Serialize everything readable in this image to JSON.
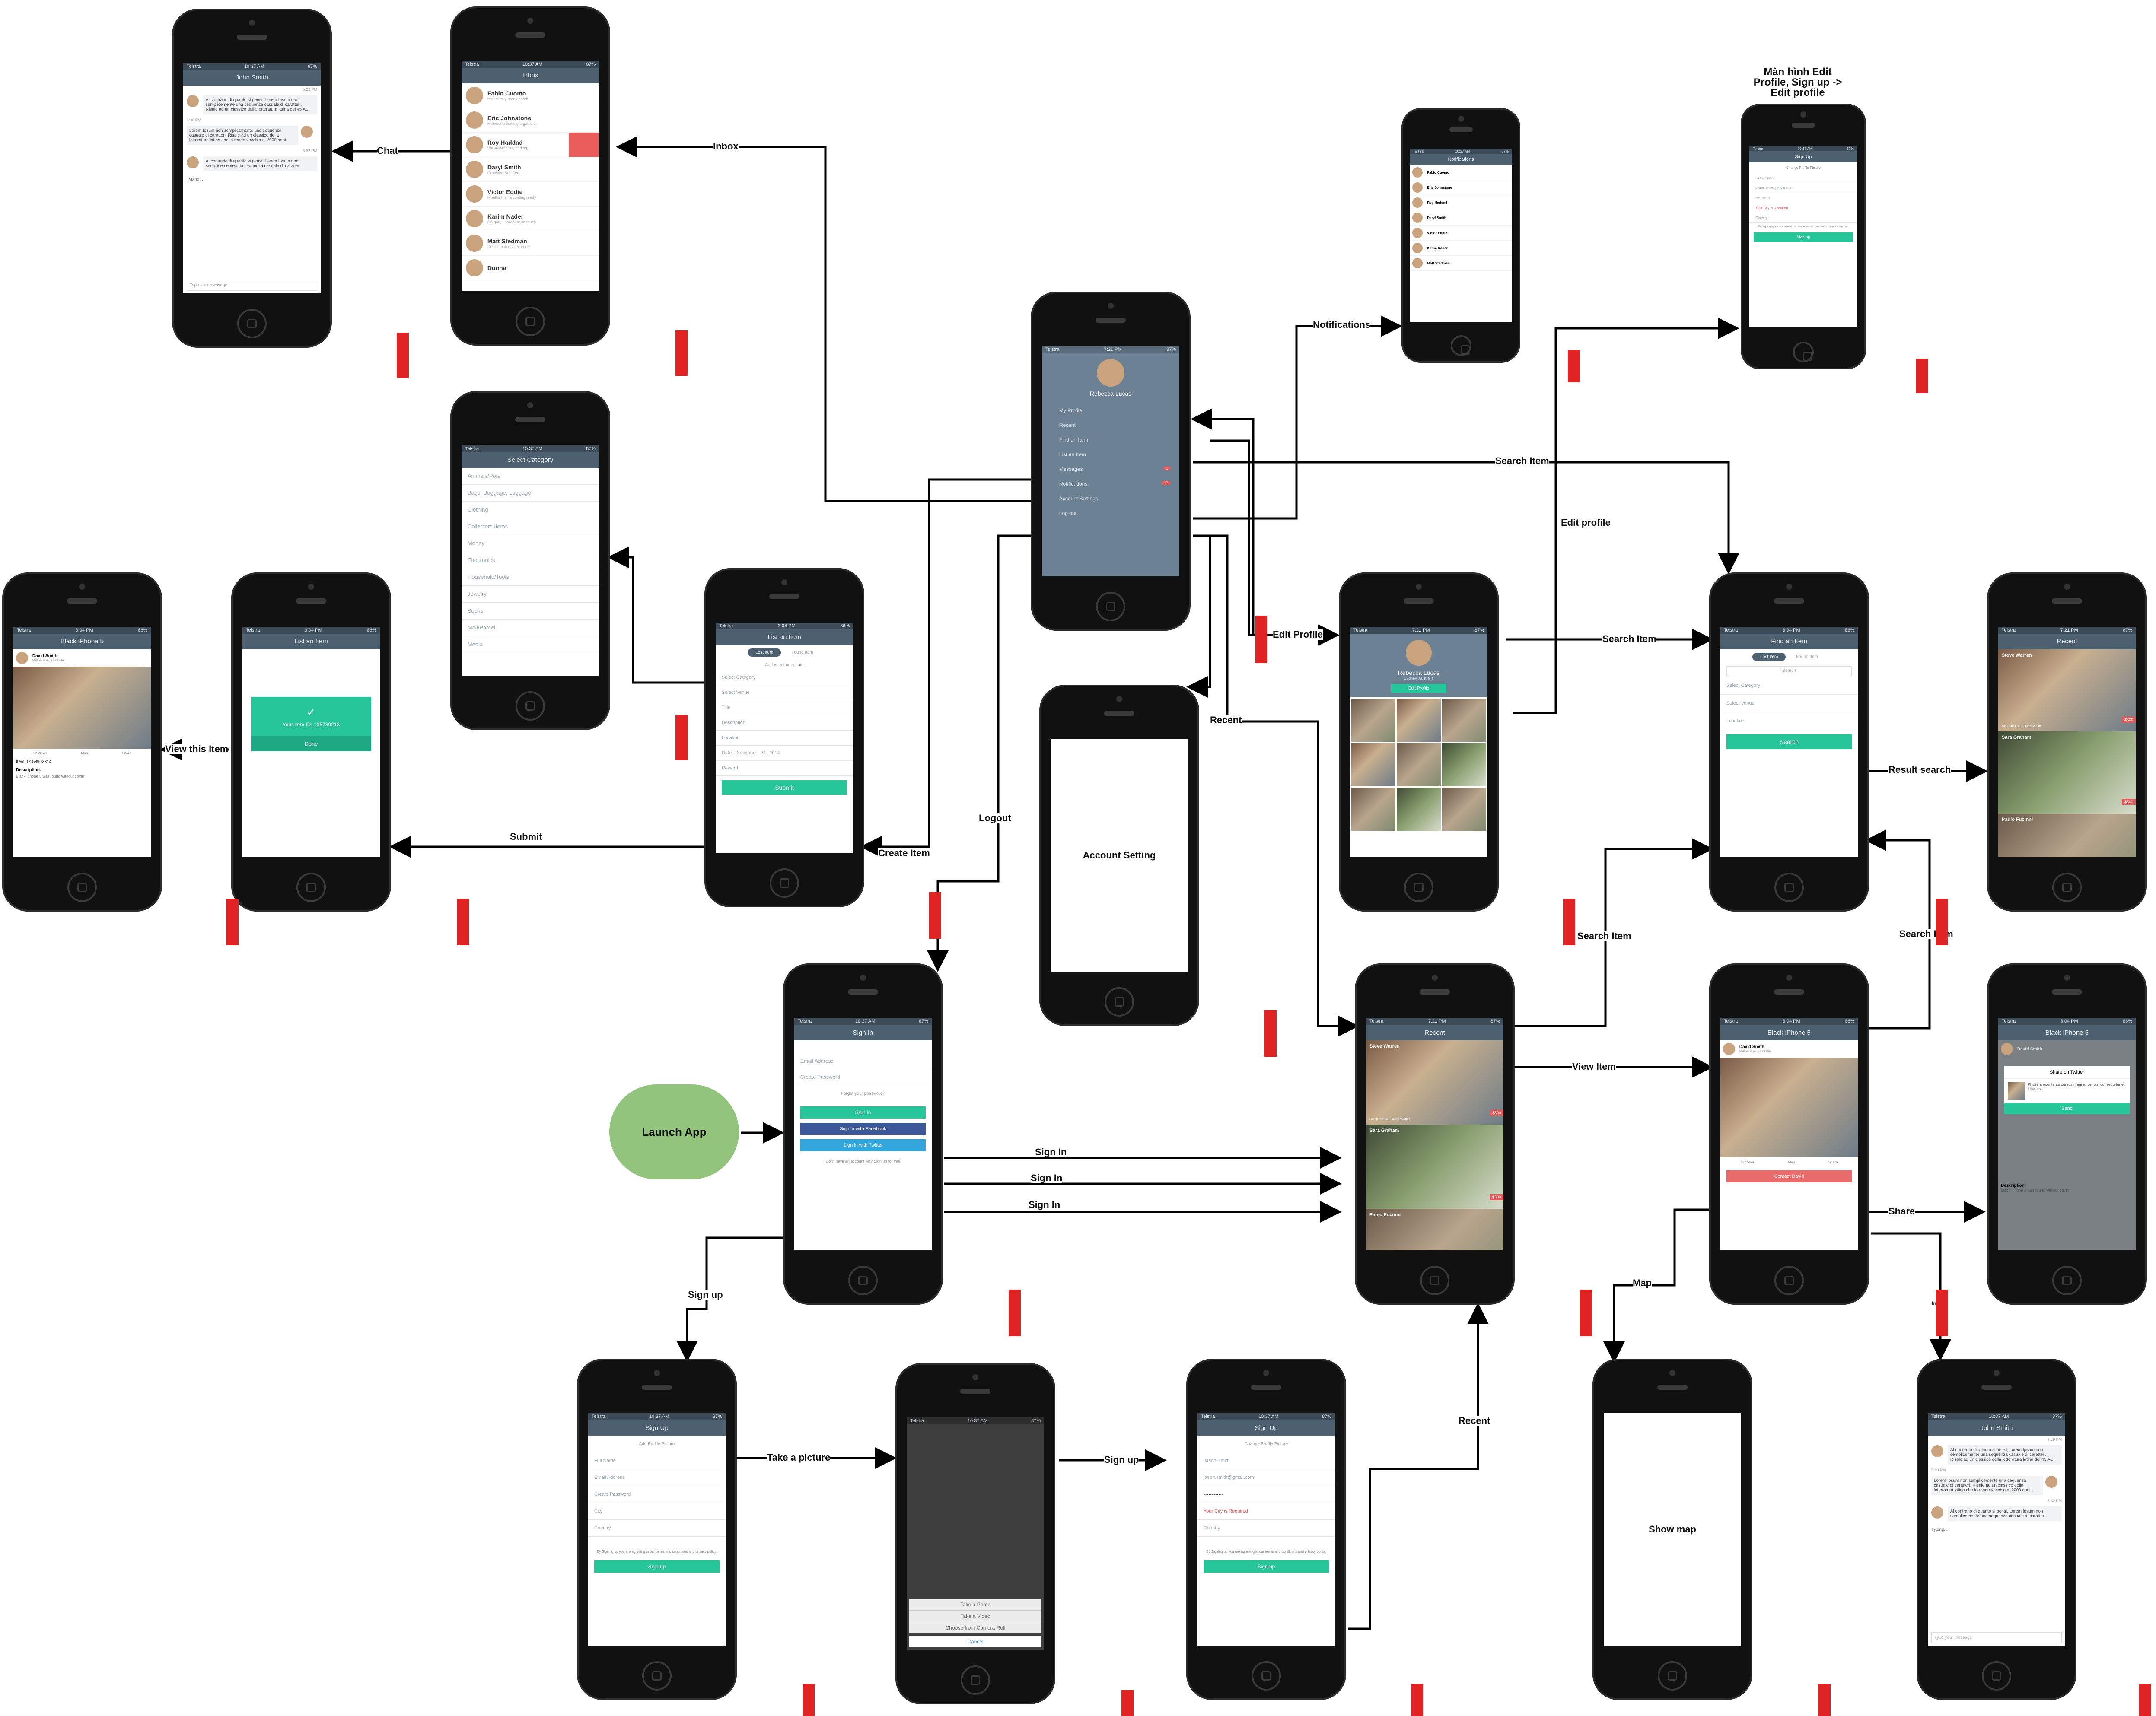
{
  "notes": {
    "edit_profile_title": "Màn hình Edit Profile, Sign up -> Edit profile"
  },
  "launch": {
    "label": "Launch App"
  },
  "placeholders": {
    "account_setting": "Account Setting",
    "show_map": "Show map"
  },
  "edges": {
    "chat": "Chat",
    "inbox": "Inbox",
    "notifications": "Notifications",
    "search_item_top": "Search Item",
    "edit_profile_upper": "Edit profile",
    "edit_profile": "Edit Profile",
    "search_item_profile": "Search Item",
    "recent_menu": "Recent",
    "logout": "Logout",
    "create_item": "Create Item",
    "submit": "Submit",
    "view_this_item": "View this Item",
    "result_search": "Result search",
    "search_item_recent": "Search Item",
    "search_item_detail": "Search Item",
    "view_item": "View Item",
    "share": "Share",
    "map": "Map",
    "inbox_small": "Inbox",
    "sign_in_1": "Sign In",
    "sign_in_2": "Sign In",
    "sign_in_3": "Sign In",
    "sign_up": "Sign up",
    "take_a_picture": "Take a picture",
    "sign_up_2": "Sign up",
    "recent_bottom": "Recent"
  },
  "screens": {
    "chat": {
      "title": "John Smith",
      "times": [
        "5:29 PM",
        "5:30 PM",
        "5:32 PM"
      ],
      "messages": [
        "Al contrario di quanto si pensi, Lorem Ipsum non semplicemente una sequenza casuale di caratteri. Risale ad un classico della letteratura latina del 45 AC.",
        "Lorem Ipsum non semplicemente una sequenza casuale di caratteri. Risale ad un classico della letteratura latina che lo rende vecchio di 2000 anni.",
        "Al contrario di quanto si pensi, Lorem Ipsum non semplicemente una sequenza casuale di caratteri."
      ],
      "typing": "Typing...",
      "input_placeholder": "Type your message"
    },
    "inbox": {
      "title": "Inbox",
      "items": [
        {
          "name": "Fabio Cuomo",
          "preview": "It's actually pretty good!"
        },
        {
          "name": "Eric Johnstone",
          "preview": "Member a coming together..."
        },
        {
          "name": "Roy Haddad",
          "preview": "We've definitely finding..."
        },
        {
          "name": "Daryl Smith",
          "preview": "Grabbing Bed Fer..."
        },
        {
          "name": "Victor Eddie",
          "preview": "Months mail a coming ready"
        },
        {
          "name": "Karim Nader",
          "preview": "Oh god, I now cute so much"
        },
        {
          "name": "Matt Stedman",
          "preview": "Don't touch my recorder!"
        },
        {
          "name": "Donna",
          "preview": ""
        }
      ]
    },
    "notifications": {
      "title": "Notifications",
      "items": [
        "Fabio Cuomo",
        "Eric Johnstone",
        "Roy Haddad",
        "Daryl Smith",
        "Victor Eddie",
        "Karim Nader",
        "Matt Stedman"
      ]
    },
    "signup_edit": {
      "title": "Sign Up",
      "change_picture": "Change Profile Picture",
      "fields": [
        "Jason Smith",
        "jason.smith@gmail.com",
        "••••••••••••",
        "Your City is Required",
        "Country"
      ],
      "terms": "By Signing up you are agreeing to our terms and conditions and privacy policy.",
      "button": "Sign up"
    },
    "menu": {
      "status_carrier": "Telstra",
      "time": "7:21 PM",
      "battery": "87%",
      "user": "Rebecca Lucas",
      "items": [
        "My Profile",
        "Recent",
        "Find an Item",
        "List an Item",
        "Messages",
        "Notifications",
        "Account Settings",
        "Log out"
      ],
      "badges": {
        "messages": "2",
        "notifications": "17"
      }
    },
    "select_category": {
      "title": "Select Category",
      "items": [
        "Animals/Pets",
        "Bags, Baggage, Luggage",
        "Clothing",
        "Collectors Items",
        "Money",
        "Electronics",
        "Household/Tools",
        "Jewelry",
        "Books",
        "Mail/Parcel",
        "Media"
      ]
    },
    "list_item": {
      "title": "List an Item",
      "tabs": [
        "Lost Item",
        "Found Item"
      ],
      "add_photo": "Add your item photo",
      "fields": [
        "Select Category",
        "Select Venue",
        "Title",
        "Description",
        "Location",
        "Date",
        "Reward"
      ],
      "date": {
        "month": "December",
        "day": "24",
        "year": "2014"
      },
      "button": "Submit"
    },
    "item_done": {
      "title": "List an Item",
      "message": "Your item ID: 135789213",
      "button": "Done"
    },
    "item_detail_left": {
      "title": "Black iPhone 5",
      "user": "David Smith",
      "location": "Melbourne, Australia",
      "actions": [
        "12 Views",
        "Map",
        "Share"
      ],
      "item_id": "Item ID: 58902314",
      "desc_label": "Description:",
      "desc": "Black iphone 5 was found without cover"
    },
    "profile": {
      "name": "Rebecca Lucas",
      "location": "Sydney, Australia",
      "button": "Edit Profile"
    },
    "find_item": {
      "title": "Find an Item",
      "tabs": [
        "Lost Item",
        "Found Item"
      ],
      "search_placeholder": "Search",
      "fields": [
        "Select Category",
        "Select Venue",
        "Location"
      ],
      "button": "Search"
    },
    "recent_right": {
      "title": "Recent",
      "cards": [
        {
          "name": "Steve Warren",
          "location": "Melbourne, Australia",
          "caption": "Black leather Gucci Wallet",
          "price": "$300"
        },
        {
          "name": "Sara Graham",
          "location": "Auckland, New Zealand",
          "price": "$500"
        },
        {
          "name": "Paulo Fucinni",
          "location": "Toronto, Canada"
        }
      ]
    },
    "signin": {
      "title": "Sign In",
      "fields": [
        "Email Address",
        "Create Password"
      ],
      "forgot": "Forgot your password?",
      "buttons": [
        "Sign in",
        "Sign in with Facebook",
        "Sign in with Twitter"
      ],
      "footer": "Don't have an account yet? Sign up for free"
    },
    "recent_center": {
      "title": "Recent",
      "cards": [
        {
          "name": "Steve Warren",
          "location": "Melbourne, Australia",
          "caption": "Black leather Gucci Wallet",
          "price": "$300"
        },
        {
          "name": "Sara Graham",
          "location": "Auckland, New Zealand",
          "price": "$500"
        },
        {
          "name": "Paulo Fucinni",
          "location": "Toronto, Canada"
        }
      ]
    },
    "item_detail_center": {
      "title": "Black iPhone 5",
      "user": "David Smith",
      "location": "Melbourne, Australia",
      "actions": [
        "12 Views",
        "Map",
        "Share"
      ],
      "button": "Contact David"
    },
    "share": {
      "title": "Black iPhone 5",
      "user": "David Smith",
      "dialog_title": "Share on Twitter",
      "dialog_text": "Phasent #contents cursus magna, vel visi consectetur et #lowfest",
      "button": "Send",
      "desc_label": "Description:",
      "desc": "Black iphone 5 was found without cover"
    },
    "signup": {
      "title": "Sign Up",
      "add_picture": "Add Profile Picture",
      "fields": [
        "Full Name",
        "Email Address",
        "Create Password",
        "City",
        "Country"
      ],
      "terms": "By Signing up you are agreeing to our terms and conditions and privacy policy.",
      "button": "Sign up"
    },
    "picker": {
      "options": [
        "Take a Photo",
        "Take a Video",
        "Choose from Camera Roll"
      ],
      "cancel": "Cancel"
    },
    "signup_filled": {
      "title": "Sign Up",
      "change_picture": "Change Profile Picture",
      "fields": [
        "Jason Smith",
        "jason.smith@gmail.com",
        "••••••••••••",
        "Your City is Required",
        "Country"
      ],
      "terms": "By Signing up you are agreeing to our terms and conditions and privacy policy.",
      "button": "Sign up"
    },
    "chat_bottom": {
      "title": "John Smith",
      "times": [
        "5:29 PM",
        "5:30 PM",
        "5:32 PM"
      ],
      "messages": [
        "Al contrario di quanto si pensi, Lorem Ipsum non semplicemente una sequenza casuale di caratteri. Risale ad un classico della letteratura latina del 45 AC.",
        "Lorem Ipsum non semplicemente una sequenza casuale di caratteri. Risale ad un classico della letteratura latina che lo rende vecchio di 2000 anni.",
        "Al contrario di quanto si pensi, Lorem Ipsum non semplicemente una sequenza casuale di caratteri."
      ],
      "typing": "Typing...",
      "input_placeholder": "Type your message"
    }
  }
}
